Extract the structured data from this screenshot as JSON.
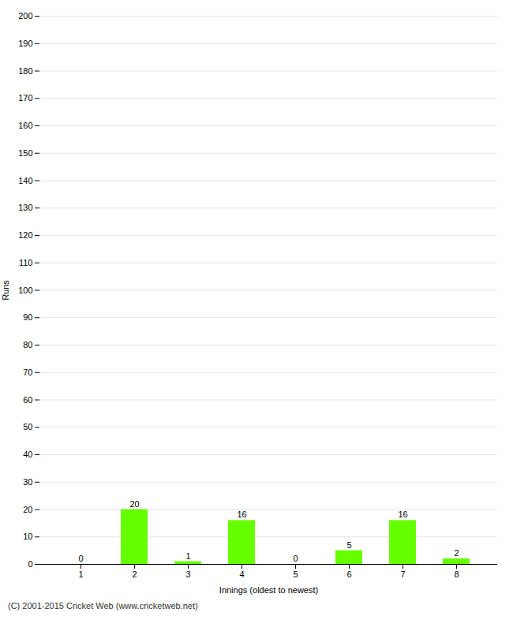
{
  "chart_data": {
    "type": "bar",
    "categories": [
      "1",
      "2",
      "3",
      "4",
      "5",
      "6",
      "7",
      "8"
    ],
    "values": [
      0,
      20,
      1,
      16,
      0,
      5,
      16,
      2
    ],
    "color": "#66ff00",
    "xlabel": "Innings (oldest to newest)",
    "ylabel": "Runs",
    "ylim": [
      0,
      200
    ],
    "yticks": [
      0,
      10,
      20,
      30,
      40,
      50,
      60,
      70,
      80,
      90,
      100,
      110,
      120,
      130,
      140,
      150,
      160,
      170,
      180,
      190,
      200
    ],
    "grid": true,
    "data_labels": true,
    "caption": "(C) 2001-2015 Cricket Web (www.cricketweb.net)"
  }
}
